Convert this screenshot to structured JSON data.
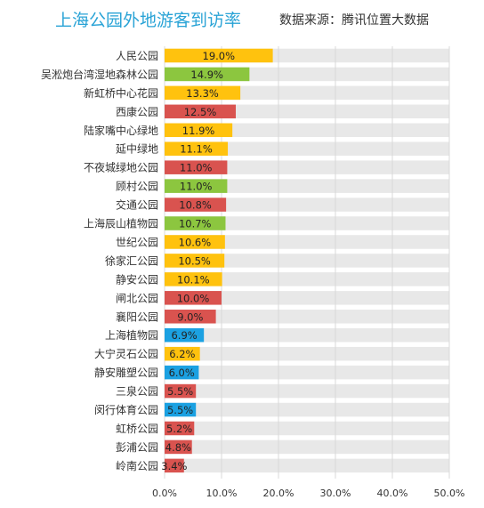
{
  "header": {
    "title": "上海公园外地游客到访率",
    "source": "数据来源：腾讯位置大数据"
  },
  "colors": {
    "yellow": "#ffc20e",
    "green": "#8cc63f",
    "red": "#d9534f",
    "blue": "#1ba1e2",
    "track": "#e8e8e8",
    "grid": "#d8d8d8"
  },
  "chart_data": {
    "type": "bar",
    "orientation": "horizontal",
    "title": "上海公园外地游客到访率",
    "categories": [
      "人民公园",
      "吴淞炮台湾湿地森林公园",
      "新虹桥中心花园",
      "西康公园",
      "陆家嘴中心绿地",
      "延中绿地",
      "不夜城绿地公园",
      "顾村公园",
      "交通公园",
      "上海辰山植物园",
      "世纪公园",
      "徐家汇公园",
      "静安公园",
      "闸北公园",
      "襄阳公园",
      "上海植物园",
      "大宁灵石公园",
      "静安雕塑公园",
      "三泉公园",
      "闵行体育公园",
      "虹桥公园",
      "彭浦公园",
      "岭南公园"
    ],
    "values": [
      19.0,
      14.9,
      13.3,
      12.5,
      11.9,
      11.1,
      11.0,
      11.0,
      10.8,
      10.7,
      10.6,
      10.5,
      10.1,
      10.0,
      9.0,
      6.9,
      6.2,
      6.0,
      5.5,
      5.5,
      5.2,
      4.8,
      3.4
    ],
    "value_labels": [
      "19.0%",
      "14.9%",
      "13.3%",
      "12.5%",
      "11.9%",
      "11.1%",
      "11.0%",
      "11.0%",
      "10.8%",
      "10.7%",
      "10.6%",
      "10.5%",
      "10.1%",
      "10.0%",
      "9.0%",
      "6.9%",
      "6.2%",
      "6.0%",
      "5.5%",
      "5.5%",
      "5.2%",
      "4.8%",
      "3.4%"
    ],
    "bar_colors": [
      "yellow",
      "green",
      "yellow",
      "red",
      "yellow",
      "yellow",
      "red",
      "green",
      "red",
      "green",
      "yellow",
      "yellow",
      "yellow",
      "red",
      "red",
      "blue",
      "yellow",
      "blue",
      "red",
      "blue",
      "red",
      "red",
      "red"
    ],
    "xlim": [
      0,
      50
    ],
    "xticks": [
      "0.0%",
      "10.0%",
      "20.0%",
      "30.0%",
      "40.0%",
      "50.0%"
    ],
    "grid": true,
    "legend": "none"
  }
}
